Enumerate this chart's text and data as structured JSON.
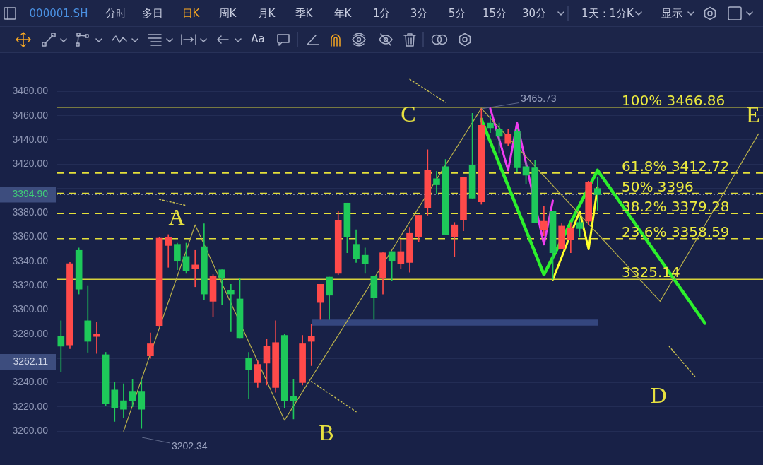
{
  "chart_data": {
    "type": "candlestick",
    "title": "000001.SH",
    "categories": [
      null,
      null,
      null,
      null,
      null,
      null,
      null,
      null,
      null,
      null,
      null,
      null,
      null,
      null,
      null,
      null,
      null,
      null,
      null,
      null,
      null,
      null,
      null,
      null,
      null,
      null,
      null,
      null,
      null,
      null,
      null,
      null,
      null,
      null,
      null,
      null,
      null,
      null,
      null,
      null,
      null,
      null,
      null,
      null,
      null,
      null,
      null,
      null,
      null,
      null,
      null,
      null,
      null,
      null,
      null,
      null,
      null,
      null,
      null,
      null,
      null,
      null,
      null,
      null,
      null,
      null,
      null,
      null,
      null,
      null,
      null,
      null,
      null,
      null,
      null,
      null,
      null,
      null,
      null
    ],
    "series": [
      {
        "ohlc": [
          [
            3278,
            3291,
            3249,
            3270
          ],
          [
            3271,
            3339,
            3268,
            3338
          ],
          [
            3349,
            3351,
            3313,
            3317
          ],
          [
            3291,
            3320,
            3265,
            3274
          ],
          [
            3278,
            3290,
            3264,
            3280
          ],
          [
            3263,
            3265,
            3221,
            3223
          ],
          [
            3234,
            3240,
            3208,
            3219
          ],
          [
            3225,
            3239,
            3211,
            3218
          ],
          [
            3233,
            3243,
            3220,
            3225
          ],
          [
            3233,
            3242,
            3202.34,
            3218
          ],
          [
            3262,
            3281,
            3260,
            3272
          ],
          [
            3287,
            3360,
            3286,
            3359
          ],
          [
            3353,
            3362,
            3335,
            3360
          ],
          [
            3354,
            3355,
            3333,
            3340
          ],
          [
            3344,
            3355,
            3330,
            3332
          ],
          [
            3334,
            3349,
            3319,
            3337
          ],
          [
            3352,
            3371,
            3308,
            3313
          ],
          [
            3307,
            3329,
            3294,
            3328
          ],
          [
            3333,
            3333,
            3304,
            3326
          ],
          [
            3316,
            3321,
            3282,
            3313
          ],
          [
            3309,
            3326,
            3277,
            3277
          ],
          [
            3260,
            3265,
            3227,
            3251
          ],
          [
            3240,
            3258,
            3236,
            3255
          ],
          [
            3256,
            3276,
            3238,
            3270
          ],
          [
            3236,
            3291,
            3232,
            3273
          ],
          [
            3279,
            3280,
            3219,
            3225
          ],
          [
            3229,
            3243,
            3210,
            3225
          ],
          [
            3240,
            3279,
            3238,
            3272
          ],
          [
            3274,
            3288,
            3254,
            3278
          ],
          [
            3306,
            3321,
            3292,
            3321
          ],
          [
            3327,
            3327,
            3292,
            3312
          ],
          [
            3330,
            3381,
            3329,
            3374
          ],
          [
            3388,
            3388,
            3347,
            3360
          ],
          [
            3354,
            3366,
            3339,
            3342
          ],
          [
            3345,
            3351,
            3330,
            3338
          ],
          [
            3328,
            3328,
            3292,
            3310
          ],
          [
            3326,
            3347,
            3313,
            3347
          ],
          [
            3348,
            3348,
            3324,
            3340
          ],
          [
            3338,
            3358,
            3334,
            3348
          ],
          [
            3339,
            3368,
            3331,
            3363
          ],
          [
            3360,
            3378,
            3356,
            3378
          ],
          [
            3384,
            3432,
            3378,
            3415
          ],
          [
            3408,
            3414,
            3396,
            3403
          ],
          [
            3418,
            3424,
            3362,
            3362
          ],
          [
            3360,
            3372,
            3344,
            3370
          ],
          [
            3374,
            3409,
            3365,
            3409
          ],
          [
            3419,
            3462,
            3392,
            3392
          ],
          [
            3389,
            3465.73,
            3387,
            3452
          ],
          [
            3454,
            3460,
            3446,
            3450
          ],
          [
            3449,
            3454,
            3429,
            3443
          ],
          [
            3437,
            3449,
            3435,
            3445
          ],
          [
            3447,
            3449,
            3414,
            3417
          ],
          [
            3418,
            3422,
            3404,
            3411
          ],
          [
            3417,
            3423,
            3372,
            3372
          ],
          [
            3366,
            3385,
            3361,
            3373
          ],
          [
            3381,
            3381,
            3325.14,
            3347
          ],
          [
            3350,
            3371,
            3350,
            3369
          ],
          [
            3358,
            3372,
            3347,
            3367
          ],
          [
            3372,
            3376,
            3360,
            3367
          ],
          [
            3373,
            3406,
            3370,
            3405
          ],
          [
            3400,
            3409,
            3382,
            3394.9
          ],
          null,
          null,
          null,
          null,
          null,
          null,
          null,
          null,
          null,
          null,
          null,
          null,
          null,
          null,
          null,
          null,
          null,
          null
        ],
        "colors": [
          "#1ec85a",
          "#ff4a4a",
          "#1ec85a",
          "#1ec85a",
          "#ff4a4a",
          "#1ec85a",
          "#1ec85a",
          "#1ec85a",
          "#1ec85a",
          "#1ec85a",
          "#ff4a4a",
          "#ff4a4a",
          "#ff4a4a",
          "#1ec85a",
          "#1ec85a",
          "#ff4a4a",
          "#1ec85a",
          "#ff4a4a",
          "#1ec85a",
          "#1ec85a",
          "#1ec85a",
          "#1ec85a",
          "#ff4a4a",
          "#ff4a4a",
          "#ff4a4a",
          "#1ec85a",
          "#1ec85a",
          "#ff4a4a",
          "#ff4a4a",
          "#ff4a4a",
          "#1ec85a",
          "#ff4a4a",
          "#1ec85a",
          "#1ec85a",
          "#1ec85a",
          "#1ec85a",
          "#ff4a4a",
          "#1ec85a",
          "#ff4a4a",
          "#ff4a4a",
          "#ff4a4a",
          "#ff4a4a",
          "#1ec85a",
          "#1ec85a",
          "#ff4a4a",
          "#ff4a4a",
          "#1ec85a",
          "#ff4a4a",
          "#1ec85a",
          "#1ec85a",
          "#ff4a4a",
          "#1ec85a",
          "#1ec85a",
          "#1ec85a",
          "#ff4a4a",
          "#1ec85a",
          "#ff4a4a",
          "#ff4a4a",
          "#1ec85a",
          "#ff4a4a",
          "#1ec85a",
          null,
          null,
          null,
          null,
          null,
          null,
          null,
          null,
          null,
          null,
          null,
          null,
          null,
          null,
          null,
          null,
          null,
          null
        ]
      },
      {
        "type": "line",
        "color": "#b9b04a",
        "values": [
          null,
          null,
          null,
          null,
          null,
          null,
          null,
          3200,
          null,
          null,
          null,
          null,
          null,
          null,
          null,
          3370,
          null,
          null,
          null,
          null,
          null,
          null,
          null,
          null,
          null,
          3209,
          null,
          null,
          null,
          null,
          null,
          null,
          null,
          null,
          null,
          null,
          null,
          null,
          null,
          null,
          null,
          null,
          null,
          null,
          null,
          null,
          null,
          3466,
          null,
          null,
          null,
          null,
          null,
          null,
          null,
          null,
          null,
          null,
          null,
          null,
          null,
          null,
          null,
          null,
          null,
          null,
          null,
          3307,
          null,
          null,
          null,
          null,
          null,
          null,
          null,
          null,
          null,
          null,
          3445
        ]
      },
      {
        "type": "line",
        "color": "#2cf02c",
        "values": [
          null,
          null,
          null,
          null,
          null,
          null,
          null,
          null,
          null,
          null,
          null,
          null,
          null,
          null,
          null,
          null,
          null,
          null,
          null,
          null,
          null,
          null,
          null,
          null,
          null,
          null,
          null,
          null,
          null,
          null,
          null,
          null,
          null,
          null,
          null,
          null,
          null,
          null,
          null,
          null,
          null,
          null,
          null,
          null,
          null,
          null,
          null,
          3457,
          null,
          null,
          null,
          null,
          null,
          null,
          3329,
          null,
          null,
          null,
          null,
          null,
          3415,
          null,
          null,
          null,
          null,
          null,
          null,
          null,
          null,
          null,
          null,
          null,
          3289,
          null,
          null,
          null,
          null,
          null,
          null
        ]
      },
      {
        "type": "line",
        "color": "#ee3cf0",
        "values": [
          null,
          null,
          null,
          null,
          null,
          null,
          null,
          null,
          null,
          null,
          null,
          null,
          null,
          null,
          null,
          null,
          null,
          null,
          null,
          null,
          null,
          null,
          null,
          null,
          null,
          null,
          null,
          null,
          null,
          null,
          null,
          null,
          null,
          null,
          null,
          null,
          null,
          null,
          null,
          null,
          null,
          null,
          null,
          null,
          null,
          null,
          null,
          null,
          3466,
          null,
          3415,
          3454,
          null,
          null,
          3354,
          3390,
          null,
          null,
          null,
          null,
          null,
          null,
          null,
          null,
          null,
          null,
          null,
          null,
          null,
          null,
          null,
          null,
          null,
          null,
          null,
          null,
          null,
          null,
          null
        ]
      },
      {
        "type": "line",
        "color": "#ffff2a",
        "values": [
          null,
          null,
          null,
          null,
          null,
          null,
          null,
          null,
          null,
          null,
          null,
          null,
          null,
          null,
          null,
          null,
          null,
          null,
          null,
          null,
          null,
          null,
          null,
          null,
          null,
          null,
          null,
          null,
          null,
          null,
          null,
          null,
          null,
          null,
          null,
          null,
          null,
          null,
          null,
          null,
          null,
          null,
          null,
          null,
          null,
          null,
          null,
          null,
          null,
          null,
          null,
          null,
          null,
          null,
          null,
          3325,
          null,
          null,
          3381,
          3350,
          3401,
          null,
          null,
          null,
          null,
          null,
          null,
          null,
          null,
          null,
          null,
          null,
          null,
          null,
          null,
          null,
          null,
          null,
          null
        ]
      },
      {
        "type": "line",
        "color": "#c9bf52",
        "line_style": "dotted",
        "values": [
          null,
          null,
          null,
          null,
          null,
          null,
          null,
          null,
          null,
          null,
          null,
          3391,
          null,
          null,
          3386,
          null,
          null,
          null,
          null,
          null,
          null,
          null,
          null,
          null,
          null,
          null,
          null,
          null,
          null,
          null,
          null,
          null,
          null,
          null,
          null,
          null,
          null,
          null,
          null,
          null,
          null,
          null,
          null,
          null,
          null,
          null,
          null,
          null,
          null,
          null,
          null,
          null,
          null,
          null,
          null,
          null,
          null,
          null,
          null,
          null,
          null,
          null,
          null,
          null,
          null,
          null,
          null,
          null,
          null,
          null,
          null,
          null,
          null,
          null,
          null,
          null,
          null,
          null,
          null
        ]
      },
      {
        "type": "line",
        "color": "#c9bf52",
        "line_style": "dotted",
        "values": [
          null,
          null,
          null,
          null,
          null,
          null,
          null,
          null,
          null,
          null,
          null,
          null,
          null,
          null,
          null,
          null,
          null,
          null,
          null,
          null,
          null,
          null,
          null,
          null,
          null,
          null,
          null,
          null,
          3241,
          null,
          null,
          null,
          null,
          3216,
          null,
          null,
          null,
          null,
          null,
          null,
          null,
          null,
          null,
          null,
          null,
          null,
          null,
          null,
          null,
          null,
          null,
          null,
          null,
          null,
          null,
          null,
          null,
          null,
          null,
          null,
          null,
          null,
          null,
          null,
          null,
          null,
          null,
          null,
          null,
          null,
          null,
          null,
          null,
          null,
          null,
          null,
          null,
          null,
          null
        ]
      },
      {
        "type": "line",
        "color": "#c9bf52",
        "line_style": "dotted",
        "values": [
          null,
          null,
          null,
          null,
          null,
          null,
          null,
          null,
          null,
          null,
          null,
          null,
          null,
          null,
          null,
          null,
          null,
          null,
          null,
          null,
          null,
          null,
          null,
          null,
          null,
          null,
          null,
          null,
          null,
          null,
          null,
          null,
          null,
          null,
          null,
          null,
          null,
          null,
          null,
          3490,
          null,
          null,
          null,
          3471,
          null,
          null,
          null,
          null,
          null,
          null,
          null,
          null,
          null,
          null,
          null,
          null,
          null,
          null,
          null,
          null,
          null,
          null,
          null,
          null,
          null,
          null,
          null,
          null,
          null,
          null,
          null,
          null,
          null,
          null,
          null,
          null,
          null,
          null,
          null
        ]
      },
      {
        "type": "line",
        "color": "#c9bf52",
        "line_style": "dotted",
        "values": [
          null,
          null,
          null,
          null,
          null,
          null,
          null,
          null,
          null,
          null,
          null,
          null,
          null,
          null,
          null,
          null,
          null,
          null,
          null,
          null,
          null,
          null,
          null,
          null,
          null,
          null,
          null,
          null,
          null,
          null,
          null,
          null,
          null,
          null,
          null,
          null,
          null,
          null,
          null,
          null,
          null,
          null,
          null,
          null,
          null,
          null,
          null,
          null,
          null,
          null,
          null,
          null,
          null,
          null,
          null,
          null,
          null,
          null,
          null,
          null,
          null,
          null,
          null,
          null,
          null,
          null,
          null,
          null,
          3270,
          null,
          null,
          3244,
          null,
          null,
          null,
          null,
          null,
          null,
          null
        ]
      }
    ],
    "ylim": [
      3184,
      3498
    ],
    "yticks": [
      {
        "value": 3200,
        "label": "3200.00"
      },
      {
        "value": 3220,
        "label": "3220.00"
      },
      {
        "value": 3240,
        "label": "3240.00"
      },
      {
        "value": 3260,
        "label": null
      },
      {
        "value": 3280,
        "label": "3280.00"
      },
      {
        "value": 3300,
        "label": "3300.00"
      },
      {
        "value": 3320,
        "label": "3320.00"
      },
      {
        "value": 3340,
        "label": "3340.00"
      },
      {
        "value": 3360,
        "label": "3360.00"
      },
      {
        "value": 3380,
        "label": "3380.00"
      },
      {
        "value": 3400,
        "label": null
      },
      {
        "value": 3420,
        "label": "3420.00"
      },
      {
        "value": 3440,
        "label": "3440.00"
      },
      {
        "value": 3460,
        "label": "3460.00"
      },
      {
        "value": 3480,
        "label": "3480.00"
      }
    ],
    "grid": "y",
    "tick_labels": "y",
    "marker": "none",
    "line_style": "solid",
    "ref_lines": [
      {
        "axis": "y",
        "value": 3466.86,
        "label": "100% 3466.86",
        "color": "#d6d13c",
        "line_style": "solid"
      },
      {
        "axis": "y",
        "value": 3412.72,
        "label": "61.8% 3412.72",
        "color": "#e4e03a",
        "line_style": "dashed"
      },
      {
        "axis": "y",
        "value": 3396,
        "label": "50% 3396",
        "color": "#e4e03a",
        "line_style": "dashed"
      },
      {
        "axis": "y",
        "value": 3379.28,
        "label": "38.2% 3379.28",
        "color": "#e4e03a",
        "line_style": "dashed"
      },
      {
        "axis": "y",
        "value": 3358.59,
        "label": "23.6% 3358.59",
        "color": "#e4e03a",
        "line_style": "dashed"
      },
      {
        "axis": "y",
        "value": 3325.14,
        "label": "3325.14",
        "color": "#d6d13c",
        "line_style": "solid"
      },
      {
        "axis": "y",
        "value": 3394.9,
        "label": "3394.90",
        "color": "#737b9c",
        "line_style": "dotted"
      }
    ],
    "bands": [
      {
        "axis": "y",
        "from": 3287,
        "to": 3292,
        "color": "#34467e"
      }
    ],
    "annotations": [
      "分时",
      "多日",
      "日K",
      "周K",
      "月K",
      "季K",
      "年K",
      "1分",
      "3分",
      "5分",
      "15分",
      "30分",
      "1天：1分K",
      "显示",
      "Aa",
      "A",
      "B",
      "C",
      "D",
      "E",
      {
        "text": "3465.73",
        "y": 3465.73
      },
      "3202.34",
      "3262.11"
    ]
  }
}
